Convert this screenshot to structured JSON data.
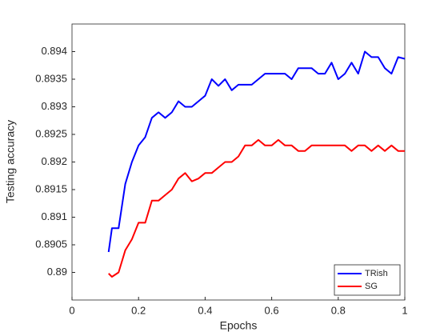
{
  "chart_data": {
    "type": "line",
    "xlabel": "Epochs",
    "ylabel": "Testing accuracy",
    "x": [
      0.11,
      0.12,
      0.14,
      0.16,
      0.18,
      0.2,
      0.22,
      0.24,
      0.26,
      0.28,
      0.3,
      0.32,
      0.34,
      0.36,
      0.38,
      0.4,
      0.42,
      0.44,
      0.46,
      0.48,
      0.5,
      0.52,
      0.54,
      0.56,
      0.58,
      0.6,
      0.62,
      0.64,
      0.66,
      0.68,
      0.7,
      0.72,
      0.74,
      0.76,
      0.78,
      0.8,
      0.82,
      0.84,
      0.86,
      0.88,
      0.9,
      0.92,
      0.94,
      0.96,
      0.98,
      1.0
    ],
    "series": [
      {
        "name": "TRish",
        "color": "#0000ff",
        "values": [
          0.89037,
          0.8908,
          0.8908,
          0.8916,
          0.892,
          0.8923,
          0.89245,
          0.8928,
          0.8929,
          0.8928,
          0.8929,
          0.8931,
          0.893,
          0.893,
          0.8931,
          0.8932,
          0.8935,
          0.89338,
          0.8935,
          0.8933,
          0.8934,
          0.8934,
          0.8934,
          0.8935,
          0.8936,
          0.8936,
          0.8936,
          0.8936,
          0.8935,
          0.8937,
          0.8937,
          0.8937,
          0.8936,
          0.8936,
          0.8938,
          0.8935,
          0.8936,
          0.8938,
          0.8936,
          0.894,
          0.8939,
          0.8939,
          0.8937,
          0.8936,
          0.8939,
          0.89387
        ]
      },
      {
        "name": "SG",
        "color": "#ff0000",
        "values": [
          0.88998,
          0.88992,
          0.89,
          0.8904,
          0.8906,
          0.8909,
          0.8909,
          0.8913,
          0.8913,
          0.8914,
          0.8915,
          0.8917,
          0.8918,
          0.89165,
          0.8917,
          0.8918,
          0.8918,
          0.8919,
          0.892,
          0.892,
          0.8921,
          0.8923,
          0.8923,
          0.8924,
          0.8923,
          0.8923,
          0.8924,
          0.8923,
          0.8923,
          0.8922,
          0.8922,
          0.8923,
          0.8923,
          0.8923,
          0.8923,
          0.8923,
          0.8923,
          0.8922,
          0.8923,
          0.8923,
          0.8922,
          0.8923,
          0.8922,
          0.8923,
          0.8922,
          0.8922
        ]
      }
    ],
    "xlim": [
      0,
      1
    ],
    "xticks": [
      0,
      0.2,
      0.4,
      0.6,
      0.8,
      1
    ],
    "ylim": [
      0.8895,
      0.8945
    ],
    "yticks": [
      0.89,
      0.8905,
      0.891,
      0.8915,
      0.892,
      0.8925,
      0.893,
      0.8935,
      0.894
    ],
    "grid": false,
    "legend": "lower right"
  }
}
